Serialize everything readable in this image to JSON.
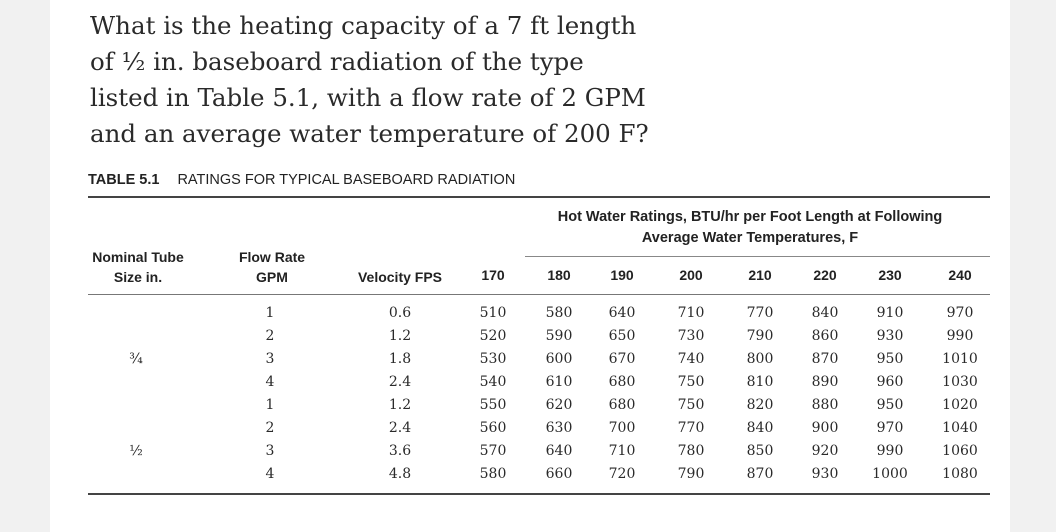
{
  "question": {
    "lines": [
      "What is the heating capacity of a 7 ft length",
      "of ½ in. baseboard radiation of the type",
      "listed in Table 5.1, with a flow rate of 2 GPM",
      "and an average water temperature of 200 F?"
    ]
  },
  "table": {
    "number": "TABLE 5.1",
    "title": "RATINGS FOR TYPICAL BASEBOARD RADIATION",
    "group_header": [
      "Hot Water Ratings, BTU/hr per Foot Length at Following",
      "Average Water Temperatures, F"
    ],
    "headers": {
      "tube": [
        "Nominal Tube",
        "Size in."
      ],
      "flow": [
        "Flow Rate",
        "GPM"
      ],
      "velocity": "Velocity FPS"
    },
    "temperatures": [
      "170",
      "180",
      "190",
      "200",
      "210",
      "220",
      "230",
      "240"
    ],
    "tube_labels": [
      "¾",
      "½"
    ],
    "rows": [
      {
        "gpm": "1",
        "fps": "0.6",
        "ratings": [
          "510",
          "580",
          "640",
          "710",
          "770",
          "840",
          "910",
          "970"
        ]
      },
      {
        "gpm": "2",
        "fps": "1.2",
        "ratings": [
          "520",
          "590",
          "650",
          "730",
          "790",
          "860",
          "930",
          "990"
        ]
      },
      {
        "gpm": "3",
        "fps": "1.8",
        "ratings": [
          "530",
          "600",
          "670",
          "740",
          "800",
          "870",
          "950",
          "1010"
        ]
      },
      {
        "gpm": "4",
        "fps": "2.4",
        "ratings": [
          "540",
          "610",
          "680",
          "750",
          "810",
          "890",
          "960",
          "1030"
        ]
      },
      {
        "gpm": "1",
        "fps": "1.2",
        "ratings": [
          "550",
          "620",
          "680",
          "750",
          "820",
          "880",
          "950",
          "1020"
        ]
      },
      {
        "gpm": "2",
        "fps": "2.4",
        "ratings": [
          "560",
          "630",
          "700",
          "770",
          "840",
          "900",
          "970",
          "1040"
        ]
      },
      {
        "gpm": "3",
        "fps": "3.6",
        "ratings": [
          "570",
          "640",
          "710",
          "780",
          "850",
          "920",
          "990",
          "1060"
        ]
      },
      {
        "gpm": "4",
        "fps": "4.8",
        "ratings": [
          "580",
          "660",
          "720",
          "790",
          "870",
          "930",
          "1000",
          "1080"
        ]
      }
    ]
  }
}
